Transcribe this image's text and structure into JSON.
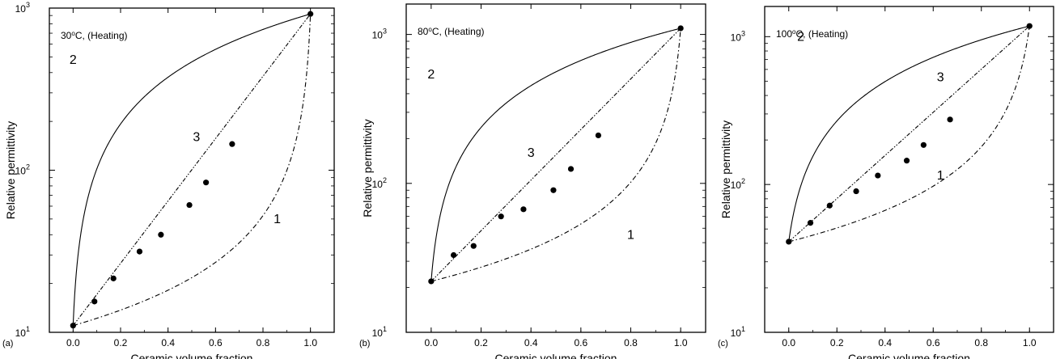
{
  "chart_data": [
    {
      "panel_label": "(a)",
      "type": "scatter",
      "condition_html": "30<tspan baseline-shift=\"super\" font-size=\"8\">o</tspan>C, (Heating)",
      "condition": "30oC, (Heating)",
      "xlabel": "Ceramic volume fraction",
      "ylabel": "Relative permittivity",
      "x_scale": "linear",
      "y_scale": "log",
      "xlim": [
        -0.1,
        1.1
      ],
      "ylim": [
        10,
        1000
      ],
      "x_ticks": [
        "0.0",
        "0.2",
        "0.4",
        "0.6",
        "0.8",
        "1.0"
      ],
      "y_ticks": [
        {
          "base": "10",
          "exp": "1"
        },
        {
          "base": "10",
          "exp": "2"
        },
        {
          "base": "10",
          "exp": "3"
        }
      ],
      "curve_labels": [
        "1",
        "2",
        "3"
      ],
      "endpoints": {
        "e_polymer": 11,
        "e_ceramic": 920
      },
      "series": [
        {
          "label": "1",
          "model": "series",
          "style": "dash-dot"
        },
        {
          "label": "2",
          "model": "parallel",
          "style": "solid"
        },
        {
          "label": "3",
          "model": "logarithmic",
          "style": "dash-dot-dot"
        },
        {
          "label": "measured",
          "style": "marker",
          "x": [
            0.0,
            0.09,
            0.17,
            0.28,
            0.37,
            0.49,
            0.56,
            0.67,
            1.0
          ],
          "y": [
            11,
            15.5,
            21.5,
            31.5,
            40,
            61,
            84,
            145,
            920
          ]
        }
      ]
    },
    {
      "panel_label": "(b)",
      "type": "scatter",
      "condition_html": "80<tspan baseline-shift=\"super\" font-size=\"8\">o</tspan>C, (Heating)",
      "condition": "80oC, (Heating)",
      "xlabel": "Ceramic volume fraction",
      "ylabel": "Relative permittivity",
      "x_scale": "linear",
      "y_scale": "log",
      "xlim": [
        -0.1,
        1.1
      ],
      "ylim": [
        10,
        1600
      ],
      "x_ticks": [
        "0.0",
        "0.2",
        "0.4",
        "0.6",
        "0.8",
        "1.0"
      ],
      "y_ticks": [
        {
          "base": "10",
          "exp": "1"
        },
        {
          "base": "10",
          "exp": "2"
        },
        {
          "base": "10",
          "exp": "3"
        }
      ],
      "curve_labels": [
        "1",
        "2",
        "3"
      ],
      "endpoints": {
        "e_polymer": 22,
        "e_ceramic": 1100
      },
      "series": [
        {
          "label": "1",
          "model": "series",
          "style": "dash-dot"
        },
        {
          "label": "2",
          "model": "parallel",
          "style": "solid"
        },
        {
          "label": "3",
          "model": "logarithmic",
          "style": "dash-dot-dot"
        },
        {
          "label": "measured",
          "style": "marker",
          "x": [
            0.0,
            0.09,
            0.17,
            0.28,
            0.37,
            0.49,
            0.56,
            0.67,
            1.0
          ],
          "y": [
            22,
            33,
            38,
            60,
            67,
            90,
            125,
            210,
            1100
          ]
        }
      ]
    },
    {
      "panel_label": "(c)",
      "type": "scatter",
      "condition_html": "100<tspan baseline-shift=\"super\" font-size=\"8\">o</tspan>C, (Heating)",
      "condition": "100oC, (Heating)",
      "xlabel": "Ceramic volume fraction",
      "ylabel": "Relative permittivity",
      "x_scale": "linear",
      "y_scale": "log",
      "xlim": [
        -0.1,
        1.1
      ],
      "ylim": [
        10,
        1600
      ],
      "x_ticks": [
        "0.0",
        "0.2",
        "0.4",
        "0.6",
        "0.8",
        "1.0"
      ],
      "y_ticks": [
        {
          "base": "10",
          "exp": "1"
        },
        {
          "base": "10",
          "exp": "2"
        },
        {
          "base": "10",
          "exp": "3"
        }
      ],
      "curve_labels": [
        "1",
        "2",
        "3"
      ],
      "endpoints": {
        "e_polymer": 41,
        "e_ceramic": 1180
      },
      "series": [
        {
          "label": "1",
          "model": "series",
          "style": "dash-dot"
        },
        {
          "label": "2",
          "model": "parallel",
          "style": "solid"
        },
        {
          "label": "3",
          "model": "logarithmic",
          "style": "dash-dot-dot"
        },
        {
          "label": "measured",
          "style": "marker",
          "x": [
            0.0,
            0.09,
            0.17,
            0.28,
            0.37,
            0.49,
            0.56,
            0.67,
            1.0
          ],
          "y": [
            41,
            55,
            72,
            90,
            115,
            145,
            185,
            275,
            1180
          ]
        }
      ]
    }
  ]
}
